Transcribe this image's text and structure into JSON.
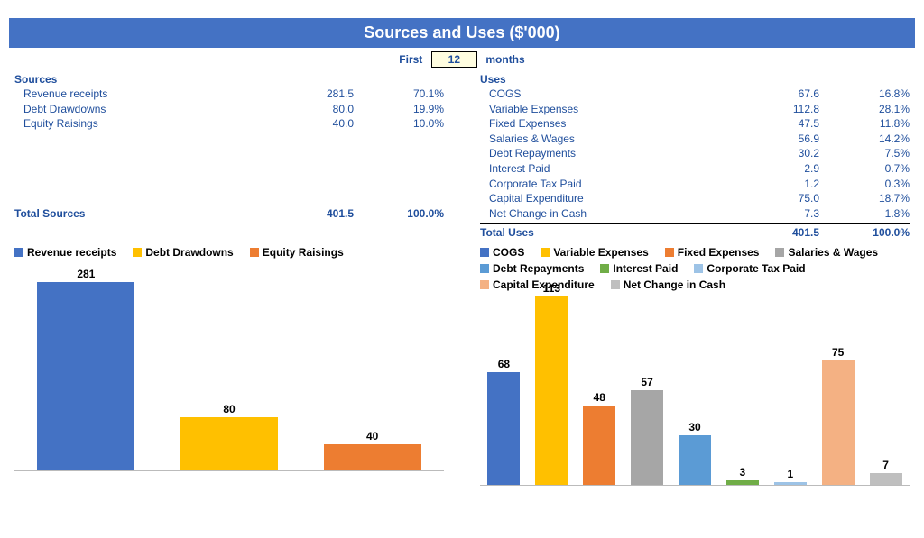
{
  "title": "Sources and Uses ($'000)",
  "period": {
    "prefix": "First",
    "value": "12",
    "suffix": "months"
  },
  "colors": {
    "header_bg": "#4472c4",
    "text_blue": "#1f4e9c",
    "input_bg": "#fffde0"
  },
  "sources": {
    "heading": "Sources",
    "items": [
      {
        "label": "Revenue receipts",
        "value": "281.5",
        "pct": "70.1%",
        "color": "#4472c4",
        "bar_value": 281
      },
      {
        "label": "Debt Drawdowns",
        "value": "80.0",
        "pct": "19.9%",
        "color": "#ffc000",
        "bar_value": 80
      },
      {
        "label": "Equity Raisings",
        "value": "40.0",
        "pct": "10.0%",
        "color": "#ed7d31",
        "bar_value": 40
      }
    ],
    "total_label": "Total Sources",
    "total_value": "401.5",
    "total_pct": "100.0%",
    "chart": {
      "ymax": 281,
      "bar_width_pct": 68
    }
  },
  "uses": {
    "heading": "Uses",
    "items": [
      {
        "label": "COGS",
        "value": "67.6",
        "pct": "16.8%",
        "color": "#4472c4",
        "bar_value": 68
      },
      {
        "label": "Variable Expenses",
        "value": "112.8",
        "pct": "28.1%",
        "color": "#ffc000",
        "bar_value": 113
      },
      {
        "label": "Fixed Expenses",
        "value": "47.5",
        "pct": "11.8%",
        "color": "#ed7d31",
        "bar_value": 48
      },
      {
        "label": "Salaries & Wages",
        "value": "56.9",
        "pct": "14.2%",
        "color": "#a6a6a6",
        "bar_value": 57
      },
      {
        "label": "Debt Repayments",
        "value": "30.2",
        "pct": "7.5%",
        "color": "#5b9bd5",
        "bar_value": 30
      },
      {
        "label": "Interest Paid",
        "value": "2.9",
        "pct": "0.7%",
        "color": "#70ad47",
        "bar_value": 3
      },
      {
        "label": "Corporate Tax Paid",
        "value": "1.2",
        "pct": "0.3%",
        "color": "#9dc3e6",
        "bar_value": 1
      },
      {
        "label": "Capital Expenditure",
        "value": "75.0",
        "pct": "18.7%",
        "color": "#f4b183",
        "bar_value": 75
      },
      {
        "label": "Net Change in Cash",
        "value": "7.3",
        "pct": "1.8%",
        "color": "#bfbfbf",
        "bar_value": 7
      }
    ],
    "total_label": "Total Uses",
    "total_value": "401.5",
    "total_pct": "100.0%",
    "chart": {
      "ymax": 113,
      "bar_width_pct": 68
    }
  }
}
